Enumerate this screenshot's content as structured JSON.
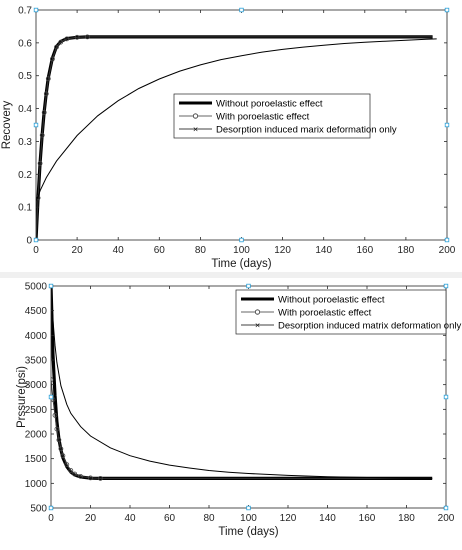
{
  "chart_data": [
    {
      "type": "line",
      "xlabel": "Time (days)",
      "ylabel": "Recovery",
      "xlim": [
        0,
        200
      ],
      "ylim": [
        0,
        0.7
      ],
      "xticks": [
        "0",
        "20",
        "40",
        "60",
        "80",
        "100",
        "120",
        "140",
        "160",
        "180",
        "200"
      ],
      "yticks": [
        "0",
        "0.1",
        "0.2",
        "0.3",
        "0.4",
        "0.5",
        "0.6",
        "0.7"
      ],
      "grid": false,
      "legend_position": "center-right",
      "series": [
        {
          "name": "Without poroelastic effect",
          "style": "thick-solid",
          "x": [
            0,
            1,
            2,
            3,
            4,
            5,
            6,
            8,
            10,
            12,
            15,
            20,
            25,
            30,
            40,
            60,
            80,
            100,
            120,
            140,
            160,
            180,
            193
          ],
          "y": [
            0,
            0.13,
            0.236,
            0.322,
            0.391,
            0.448,
            0.494,
            0.554,
            0.589,
            0.604,
            0.613,
            0.617,
            0.618,
            0.618,
            0.618,
            0.618,
            0.618,
            0.618,
            0.618,
            0.618,
            0.618,
            0.618,
            0.618
          ]
        },
        {
          "name": "With poroelastic effect",
          "style": "circle-markers",
          "x": [
            0,
            1,
            2,
            3,
            4,
            5,
            6,
            8,
            10,
            12,
            15,
            20,
            25,
            30,
            40,
            60,
            80,
            100,
            120,
            140,
            160,
            180,
            193
          ],
          "y": [
            0,
            0.128,
            0.233,
            0.319,
            0.388,
            0.445,
            0.491,
            0.551,
            0.587,
            0.602,
            0.612,
            0.617,
            0.618,
            0.618,
            0.618,
            0.618,
            0.618,
            0.618,
            0.618,
            0.618,
            0.618,
            0.618,
            0.618
          ]
        },
        {
          "name": "Desorption induced marix deformation only",
          "style": "thin-solid",
          "x": [
            0,
            1,
            2,
            5,
            10,
            20,
            30,
            40,
            50,
            60,
            70,
            80,
            90,
            100,
            110,
            120,
            130,
            140,
            150,
            160,
            170,
            180,
            190,
            195
          ],
          "y": [
            0.12,
            0.132,
            0.15,
            0.19,
            0.24,
            0.318,
            0.378,
            0.424,
            0.461,
            0.49,
            0.514,
            0.533,
            0.549,
            0.561,
            0.572,
            0.58,
            0.587,
            0.593,
            0.598,
            0.602,
            0.605,
            0.608,
            0.611,
            0.612
          ]
        }
      ]
    },
    {
      "type": "line",
      "xlabel": "Time (days)",
      "ylabel": "Prssure(psi)",
      "xlim": [
        0,
        200
      ],
      "ylim": [
        500,
        5000
      ],
      "xticks": [
        "0",
        "20",
        "40",
        "60",
        "80",
        "100",
        "120",
        "140",
        "160",
        "180",
        "200"
      ],
      "yticks": [
        "500",
        "1000",
        "1500",
        "2000",
        "2500",
        "3000",
        "3500",
        "4000",
        "4500",
        "5000"
      ],
      "grid": false,
      "legend_position": "top-right",
      "series": [
        {
          "name": "Without poroelastic effect",
          "style": "thick-solid",
          "x": [
            0,
            1,
            2,
            3,
            4,
            5,
            6,
            8,
            10,
            12,
            15,
            20,
            25,
            30,
            40,
            60,
            80,
            100,
            120,
            140,
            160,
            180,
            193
          ],
          "y": [
            5000,
            3600,
            2780,
            2250,
            1900,
            1680,
            1520,
            1340,
            1230,
            1170,
            1130,
            1105,
            1100,
            1100,
            1100,
            1100,
            1100,
            1100,
            1100,
            1100,
            1100,
            1100,
            1100
          ]
        },
        {
          "name": "With poroelastic effect",
          "style": "circle-markers",
          "x": [
            0,
            1,
            2,
            3,
            4,
            5,
            6,
            8,
            10,
            12,
            15,
            20,
            25,
            30,
            40,
            60,
            80,
            100,
            120,
            140,
            160,
            180,
            193
          ],
          "y": [
            3100,
            2700,
            2380,
            2100,
            1880,
            1700,
            1560,
            1380,
            1260,
            1190,
            1140,
            1110,
            1100,
            1100,
            1100,
            1100,
            1100,
            1100,
            1100,
            1100,
            1100,
            1100,
            1100
          ]
        },
        {
          "name": "Desorption induced matrix deformation only",
          "style": "thin-solid",
          "x": [
            0,
            1,
            2,
            3,
            5,
            8,
            10,
            15,
            20,
            30,
            40,
            50,
            60,
            70,
            80,
            90,
            100,
            120,
            140,
            160,
            180,
            193
          ],
          "y": [
            5000,
            4300,
            3800,
            3450,
            2980,
            2600,
            2420,
            2150,
            1960,
            1720,
            1560,
            1450,
            1370,
            1310,
            1260,
            1225,
            1200,
            1160,
            1135,
            1118,
            1105,
            1100
          ]
        }
      ]
    }
  ]
}
